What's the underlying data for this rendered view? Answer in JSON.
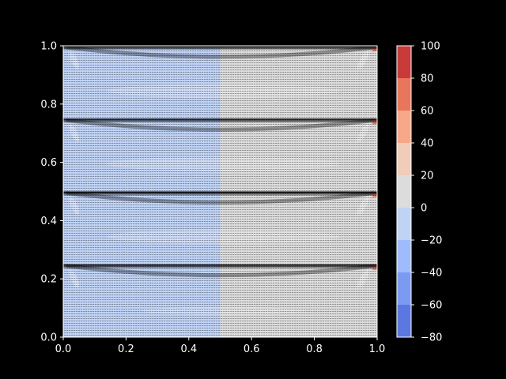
{
  "chart_data": {
    "type": "contour",
    "title": "",
    "xlabel": "",
    "ylabel": "",
    "xlim": [
      0,
      1
    ],
    "ylim": [
      0,
      1
    ],
    "xticks": [
      "0.0",
      "0.2",
      "0.4",
      "0.6",
      "0.8",
      "1.0"
    ],
    "yticks": [
      "0.0",
      "0.2",
      "0.4",
      "0.6",
      "0.8",
      "1.0"
    ],
    "background": "#000000",
    "text_color": "#ffffff",
    "colormap": "coolwarm",
    "colorbar": {
      "levels": [
        -80,
        -60,
        -40,
        -20,
        0,
        20,
        40,
        60,
        80,
        100
      ],
      "ticks": [
        "−80",
        "−60",
        "−40",
        "−20",
        "0",
        "20",
        "40",
        "60",
        "80",
        "100"
      ],
      "colors": [
        "#5a78e0",
        "#7b9bf3",
        "#9ebcfc",
        "#c0d3f5",
        "#dcdcdc",
        "#f1ccb8",
        "#f7a889",
        "#e8765c",
        "#c73c3a"
      ]
    },
    "regions": [
      {
        "x": [
          0.0,
          0.5
        ],
        "level_range": [
          -20,
          0
        ],
        "color": "#c0d3f5"
      },
      {
        "x": [
          0.5,
          1.0
        ],
        "level_range": [
          0,
          20
        ],
        "color": "#dcdcdc"
      }
    ],
    "bands": [
      {
        "y_bottom": 0.0,
        "y_top": 0.25,
        "blob_x": [
          0.25,
          0.77
        ],
        "blob_y": 0.09,
        "blob_height": 0.028
      },
      {
        "y_bottom": 0.25,
        "y_top": 0.5,
        "blob_x": [
          0.14,
          0.88
        ],
        "blob_y": 0.345,
        "blob_height": 0.05
      },
      {
        "y_bottom": 0.5,
        "y_top": 0.75,
        "blob_x": [
          0.14,
          0.88
        ],
        "blob_y": 0.595,
        "blob_height": 0.05
      },
      {
        "y_bottom": 0.75,
        "y_top": 1.0,
        "blob_x": [
          0.14,
          0.88
        ],
        "blob_y": 0.845,
        "blob_height": 0.05
      }
    ],
    "vector_overlay": true
  }
}
